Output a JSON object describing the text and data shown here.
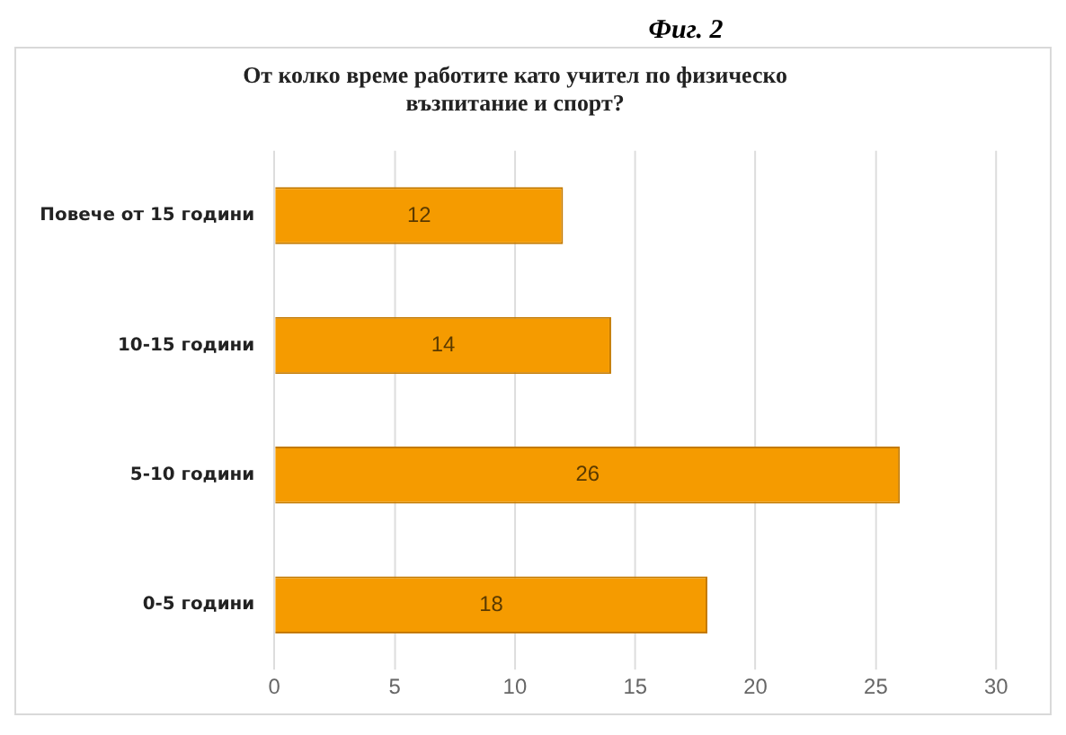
{
  "chart_data": {
    "type": "bar",
    "orientation": "horizontal",
    "title": "От колко време работите като учител по физическо възпитание и спорт?",
    "annotations": [
      "Фиг. 2"
    ],
    "categories": [
      "Повече от 15 години",
      "10-15 години",
      "5-10 години",
      "0-5 години"
    ],
    "values": [
      12,
      14,
      26,
      18
    ],
    "color": "#f59b00",
    "xlim": [
      0,
      30
    ],
    "xticks": [
      0,
      5,
      10,
      15,
      20,
      25,
      30
    ],
    "grid": "x",
    "data_labels": true,
    "legend": false
  }
}
